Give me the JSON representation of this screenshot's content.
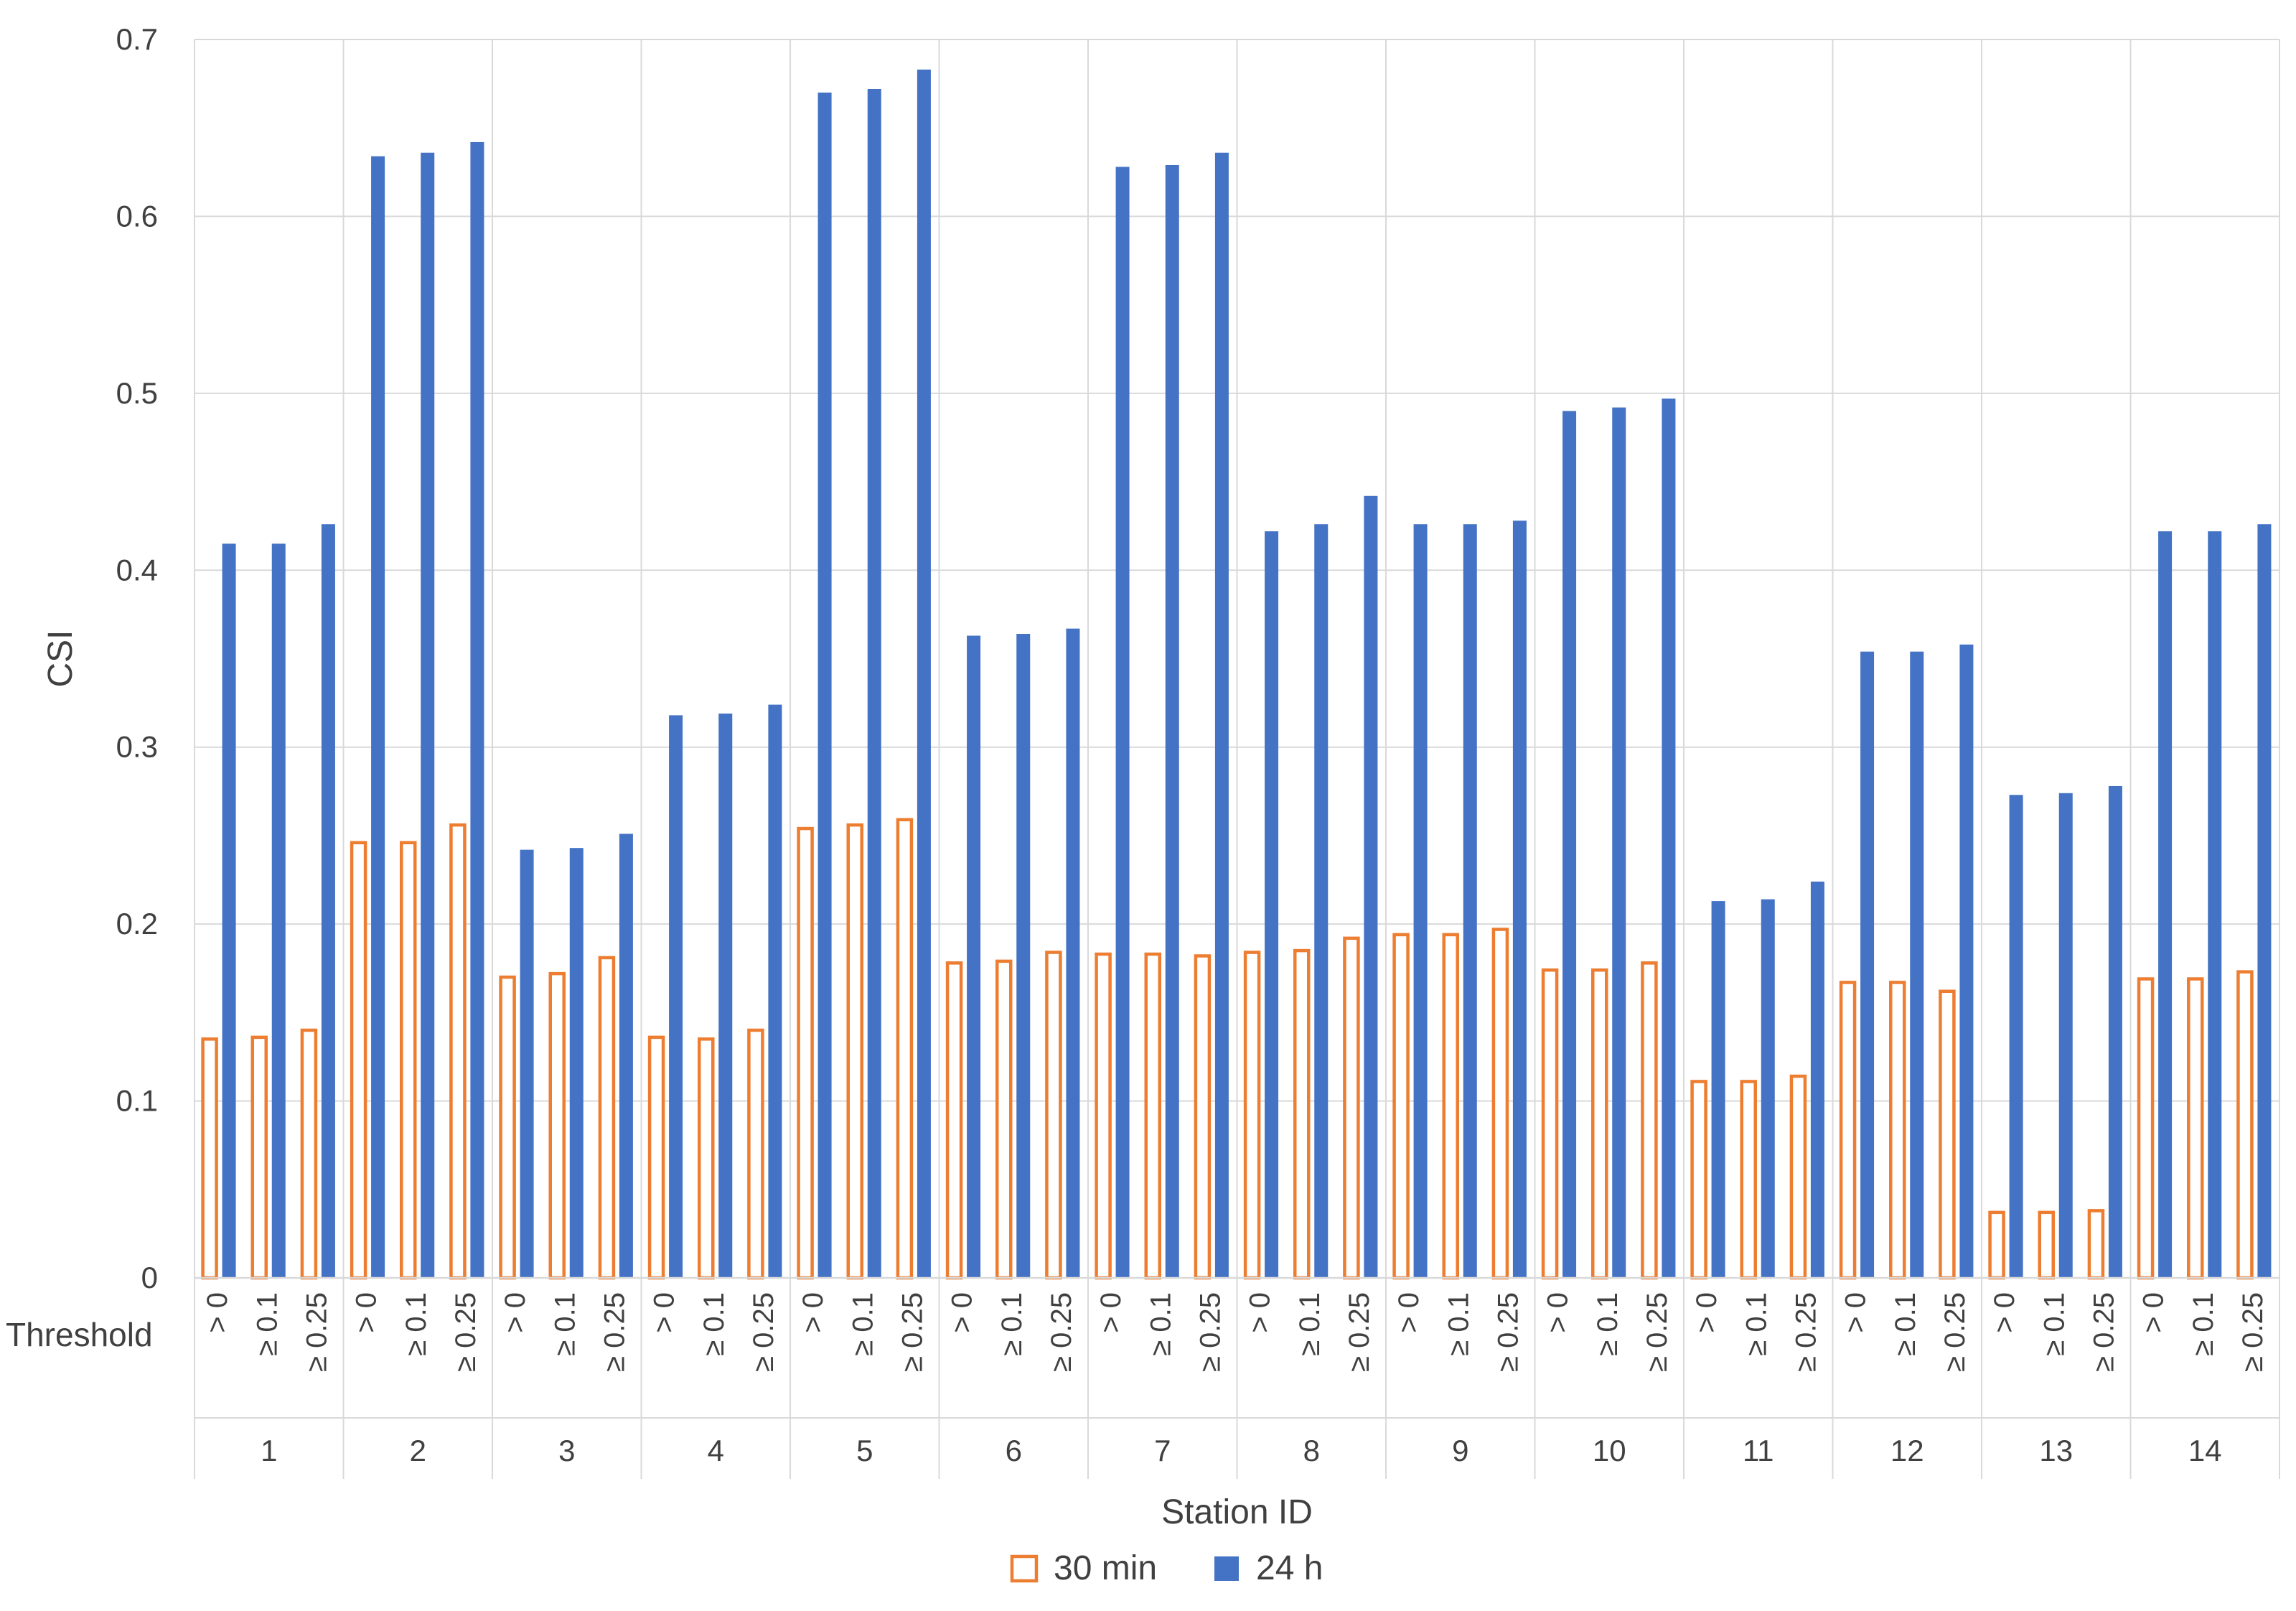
{
  "chart_data": {
    "type": "bar",
    "ylabel": "CSI",
    "xlabel": "Station ID",
    "threshold_label": "Threshold",
    "ylim": [
      0,
      0.7
    ],
    "yticks": [
      "0",
      "0.1",
      "0.2",
      "0.3",
      "0.4",
      "0.5",
      "0.6",
      "0.7"
    ],
    "grid": true,
    "legend_position": "bottom",
    "stations": [
      "1",
      "2",
      "3",
      "4",
      "5",
      "6",
      "7",
      "8",
      "9",
      "10",
      "11",
      "12",
      "13",
      "14"
    ],
    "thresholds": [
      "> 0",
      "≥ 0.1",
      "≥ 0.25"
    ],
    "series": [
      {
        "name": "30 min",
        "style": "outline",
        "color": "#ED7D31",
        "values": [
          0.135,
          0.136,
          0.14,
          0.246,
          0.246,
          0.256,
          0.17,
          0.172,
          0.181,
          0.136,
          0.135,
          0.14,
          0.254,
          0.256,
          0.259,
          0.178,
          0.179,
          0.184,
          0.183,
          0.183,
          0.182,
          0.184,
          0.185,
          0.192,
          0.194,
          0.194,
          0.197,
          0.174,
          0.174,
          0.178,
          0.111,
          0.111,
          0.114,
          0.167,
          0.167,
          0.162,
          0.037,
          0.037,
          0.038,
          0.169,
          0.169,
          0.173
        ]
      },
      {
        "name": "24 h",
        "style": "solid",
        "color": "#4472C4",
        "values": [
          0.415,
          0.415,
          0.426,
          0.634,
          0.636,
          0.642,
          0.242,
          0.243,
          0.251,
          0.318,
          0.319,
          0.324,
          0.67,
          0.672,
          0.683,
          0.363,
          0.364,
          0.367,
          0.628,
          0.629,
          0.636,
          0.422,
          0.426,
          0.442,
          0.426,
          0.426,
          0.428,
          0.49,
          0.492,
          0.497,
          0.213,
          0.214,
          0.224,
          0.354,
          0.354,
          0.358,
          0.273,
          0.274,
          0.278,
          0.422,
          0.422,
          0.426
        ]
      }
    ]
  }
}
